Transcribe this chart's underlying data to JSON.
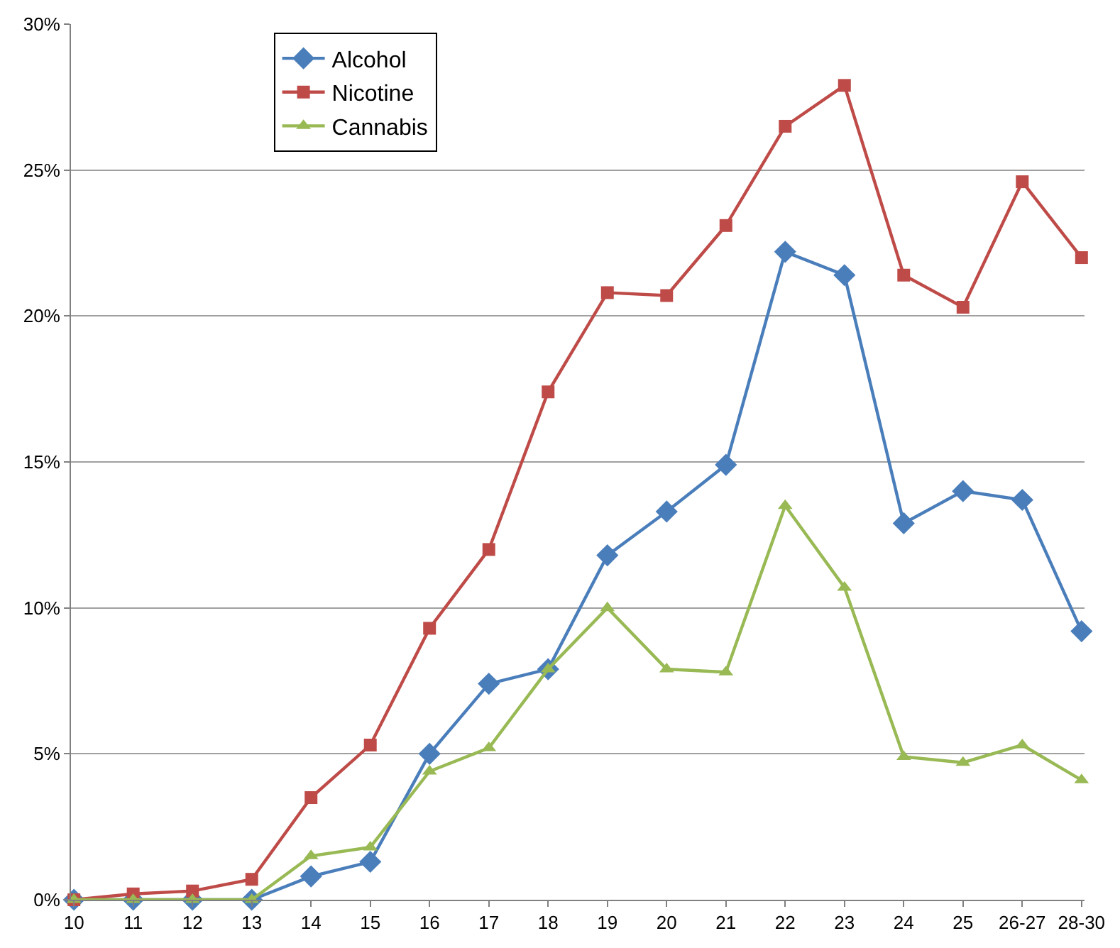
{
  "chart_data": {
    "type": "line",
    "categories": [
      "10",
      "11",
      "12",
      "13",
      "14",
      "15",
      "16",
      "17",
      "18",
      "19",
      "20",
      "21",
      "22",
      "23",
      "24",
      "25",
      "26-27",
      "28-30"
    ],
    "series": [
      {
        "name": "Alcohol",
        "color": "#4a7ebb",
        "marker": "diamond",
        "values": [
          0,
          0,
          0,
          0,
          0.8,
          1.3,
          5.0,
          7.4,
          7.9,
          11.8,
          13.3,
          14.9,
          22.2,
          21.4,
          12.9,
          14.0,
          13.7,
          9.2
        ]
      },
      {
        "name": "Nicotine",
        "color": "#be4b48",
        "marker": "square",
        "values": [
          0,
          0.2,
          0.3,
          0.7,
          3.5,
          5.3,
          9.3,
          12.0,
          17.4,
          20.8,
          20.7,
          23.1,
          26.5,
          27.9,
          21.4,
          20.3,
          24.6,
          22.0
        ]
      },
      {
        "name": "Cannabis",
        "color": "#98b954",
        "marker": "triangle",
        "values": [
          0,
          0,
          0,
          0,
          1.5,
          1.8,
          4.4,
          5.2,
          7.9,
          10.0,
          7.9,
          7.8,
          13.5,
          10.7,
          4.9,
          4.7,
          5.3,
          4.1
        ]
      }
    ],
    "ylim": [
      0,
      30
    ],
    "yticks": [
      {
        "value": 0,
        "label": "0%"
      },
      {
        "value": 5,
        "label": "5%"
      },
      {
        "value": 10,
        "label": "10%"
      },
      {
        "value": 15,
        "label": "15%"
      },
      {
        "value": 20,
        "label": "20%"
      },
      {
        "value": 25,
        "label": "25%"
      },
      {
        "value": 30,
        "label": "30%"
      }
    ],
    "grid": "y",
    "legend": "top left",
    "line_style": "solid"
  }
}
